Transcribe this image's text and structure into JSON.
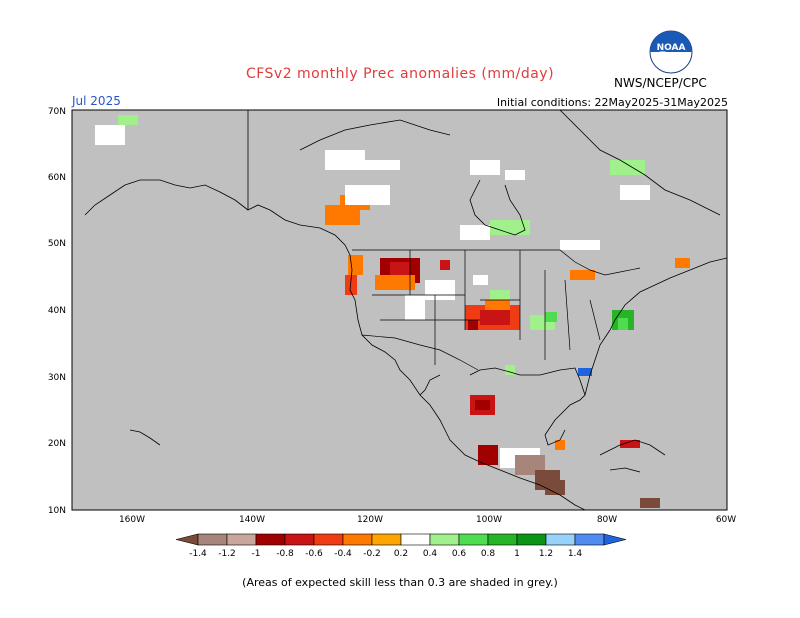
{
  "header": {
    "title": "CFSv2 monthly Prec anomalies (mm/day)",
    "period": "Jul 2025",
    "initial_conditions": "Initial conditions: 22May2025-31May2025",
    "agency": "NWS/NCEP/CPC",
    "logo_text": "NOAA"
  },
  "map": {
    "background_color": "#c0c0c0",
    "lat_labels": [
      "70N",
      "60N",
      "50N",
      "40N",
      "30N",
      "20N",
      "10N"
    ],
    "lon_labels": [
      "160W",
      "140W",
      "120W",
      "100W",
      "80W",
      "60W"
    ]
  },
  "colorbar": {
    "labels": [
      "-1.4",
      "-1.2",
      "-1",
      "-0.8",
      "-0.6",
      "-0.4",
      "-0.2",
      "0.2",
      "0.4",
      "0.6",
      "0.8",
      "1",
      "1.2",
      "1.4"
    ],
    "colors": [
      "#7a4a3a",
      "#a8857a",
      "#c8a69c",
      "#a00000",
      "#c81414",
      "#f03c14",
      "#ff7800",
      "#ffa500",
      "#ffffff",
      "#a0f08c",
      "#50dc50",
      "#28b428",
      "#0a9614",
      "#96d2fa",
      "#508cf0",
      "#1e64dc"
    ]
  },
  "footnote": "(Areas of expected skill less than 0.3 are shaded in grey.)"
}
